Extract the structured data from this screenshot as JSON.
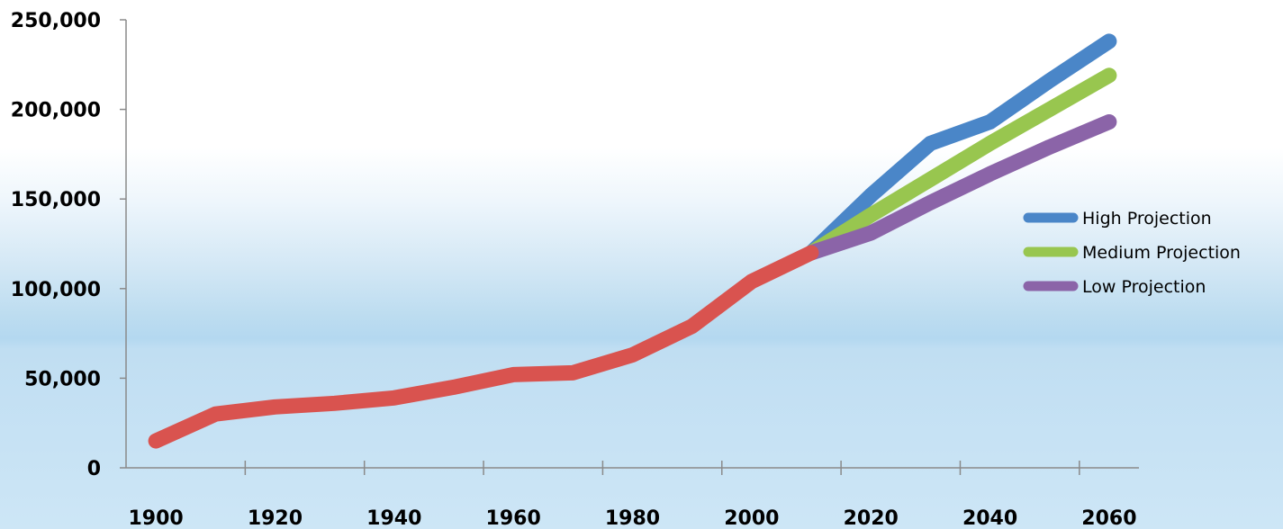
{
  "chart_data": {
    "type": "line",
    "title": "",
    "xlabel": "",
    "ylabel": "",
    "xlim": [
      1895,
      2065
    ],
    "ylim": [
      0,
      250000
    ],
    "x_ticks": [
      "1900",
      "1920",
      "1940",
      "1960",
      "1980",
      "2000",
      "2020",
      "2040",
      "2060"
    ],
    "y_ticks": [
      "0",
      "50,000",
      "100,000",
      "150,000",
      "200,000",
      "250,000"
    ],
    "grid": false,
    "legend_position": "right",
    "series": [
      {
        "name": "",
        "color": "#d9534f",
        "x": [
          1900,
          1910,
          1920,
          1930,
          1940,
          1950,
          1960,
          1970,
          1980,
          1990,
          2000,
          2010
        ],
        "y": [
          15000,
          30000,
          34000,
          36000,
          39000,
          45000,
          52000,
          53000,
          63000,
          79000,
          104000,
          120000
        ]
      },
      {
        "name": "High Projection",
        "color": "#4a86c8",
        "x": [
          2010,
          2020,
          2030,
          2040,
          2050,
          2060
        ],
        "y": [
          120000,
          152000,
          181000,
          193000,
          216000,
          238000
        ]
      },
      {
        "name": "Medium Projection",
        "color": "#98c64f",
        "x": [
          2010,
          2020,
          2030,
          2040,
          2050,
          2060
        ],
        "y": [
          120000,
          141000,
          161000,
          181000,
          200000,
          219000
        ]
      },
      {
        "name": "Low Projection",
        "color": "#8b64a8",
        "x": [
          2010,
          2020,
          2030,
          2040,
          2050,
          2060
        ],
        "y": [
          120000,
          131000,
          148000,
          164000,
          179000,
          193000
        ]
      }
    ]
  }
}
